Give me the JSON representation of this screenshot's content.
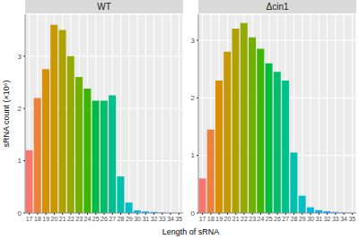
{
  "chart_data": [
    {
      "type": "bar",
      "title": "WT",
      "xlabel": "Length of sRNA",
      "ylabel": "sRNA count (×10⁶)",
      "categories": [
        17,
        18,
        19,
        20,
        21,
        22,
        23,
        24,
        25,
        26,
        27,
        28,
        29,
        30,
        31,
        32,
        33,
        34,
        35
      ],
      "values": [
        1.2,
        2.2,
        2.75,
        3.6,
        3.5,
        3.0,
        2.6,
        2.38,
        2.15,
        2.15,
        2.25,
        0.7,
        0.2,
        0.05,
        0.03,
        0.02,
        0.01,
        0.005,
        0.003
      ],
      "colors": [
        "#F8766D",
        "#EC8239",
        "#DB8E00",
        "#C79800",
        "#AFA200",
        "#94AA00",
        "#72B000",
        "#3DB600",
        "#00BA42",
        "#00BE6C",
        "#00C08D",
        "#00C1AB",
        "#00BFC4",
        "#00BBDB",
        "#00B4EF",
        "#00A9FF",
        "#619CFF",
        "#A58AFF",
        "#C77CFF"
      ],
      "ylim": [
        0,
        3.8
      ],
      "yticks": [
        0,
        1,
        2,
        3
      ],
      "grid": true
    },
    {
      "type": "bar",
      "title": "Δcin1",
      "categories": [
        17,
        18,
        19,
        20,
        21,
        22,
        23,
        24,
        25,
        26,
        27,
        28,
        29,
        30,
        31,
        32,
        33,
        34,
        35
      ],
      "values": [
        0.6,
        1.45,
        2.3,
        2.8,
        3.2,
        3.3,
        3.05,
        2.85,
        2.6,
        2.45,
        2.3,
        1.05,
        0.3,
        0.1,
        0.05,
        0.03,
        0.02,
        0.01,
        0.005
      ],
      "colors": [
        "#F8766D",
        "#EC8239",
        "#DB8E00",
        "#C79800",
        "#AFA200",
        "#94AA00",
        "#72B000",
        "#3DB600",
        "#00BA42",
        "#00BE6C",
        "#00C08D",
        "#00C1AB",
        "#00BFC4",
        "#00BBDB",
        "#00B4EF",
        "#00A9FF",
        "#619CFF",
        "#A58AFF",
        "#C77CFF"
      ],
      "ylim": [
        0,
        3.45
      ],
      "yticks": [
        0,
        1,
        2,
        3
      ],
      "grid": true
    }
  ]
}
